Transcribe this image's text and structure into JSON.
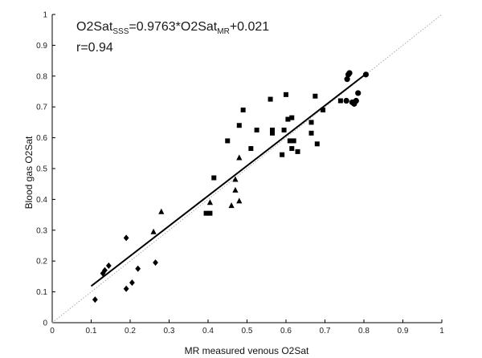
{
  "chart_data": {
    "type": "scatter",
    "xlabel": "MR measured venous O2Sat",
    "ylabel": "Blood gas O2Sat",
    "xlim": [
      0,
      1
    ],
    "ylim": [
      0,
      1
    ],
    "x_ticks": [
      "0",
      "0.1",
      "0.2",
      "0.3",
      "0.4",
      "0.5",
      "0.6",
      "0.7",
      "0.8",
      "0.9",
      "1"
    ],
    "y_ticks": [
      "0",
      "0.1",
      "0.2",
      "0.3",
      "0.4",
      "0.5",
      "0.6",
      "0.7",
      "0.8",
      "0.9",
      "1"
    ],
    "grid": false,
    "annotation": {
      "eq_left": "O2Sat",
      "eq_sub1": "SSS",
      "eq_mid": "=0.9763*O2Sat",
      "eq_sub2": "MR",
      "eq_right": "+0.021",
      "r_text": "r=0.94"
    },
    "fit_line": {
      "slope": 0.9763,
      "intercept": 0.021,
      "x_range": [
        0.1,
        0.81
      ],
      "color": "#000000"
    },
    "identity_line": {
      "color": "#aaaaaa",
      "style": "dotted"
    },
    "series": [
      {
        "marker": "diamond",
        "points": [
          [
            0.11,
            0.075
          ],
          [
            0.13,
            0.16
          ],
          [
            0.135,
            0.17
          ],
          [
            0.145,
            0.185
          ],
          [
            0.19,
            0.11
          ],
          [
            0.19,
            0.275
          ],
          [
            0.205,
            0.13
          ],
          [
            0.22,
            0.175
          ],
          [
            0.265,
            0.195
          ]
        ]
      },
      {
        "marker": "triangle",
        "points": [
          [
            0.26,
            0.295
          ],
          [
            0.28,
            0.36
          ],
          [
            0.405,
            0.39
          ],
          [
            0.46,
            0.38
          ],
          [
            0.47,
            0.43
          ],
          [
            0.47,
            0.465
          ],
          [
            0.48,
            0.395
          ],
          [
            0.48,
            0.535
          ]
        ]
      },
      {
        "marker": "square",
        "points": [
          [
            0.395,
            0.355
          ],
          [
            0.405,
            0.355
          ],
          [
            0.415,
            0.47
          ],
          [
            0.45,
            0.59
          ],
          [
            0.48,
            0.64
          ],
          [
            0.49,
            0.69
          ],
          [
            0.51,
            0.565
          ],
          [
            0.525,
            0.625
          ],
          [
            0.56,
            0.725
          ],
          [
            0.565,
            0.625
          ],
          [
            0.565,
            0.615
          ],
          [
            0.59,
            0.545
          ],
          [
            0.595,
            0.625
          ],
          [
            0.6,
            0.74
          ],
          [
            0.605,
            0.66
          ],
          [
            0.61,
            0.59
          ],
          [
            0.615,
            0.665
          ],
          [
            0.615,
            0.565
          ],
          [
            0.62,
            0.59
          ],
          [
            0.63,
            0.555
          ],
          [
            0.665,
            0.65
          ],
          [
            0.665,
            0.615
          ],
          [
            0.675,
            0.735
          ],
          [
            0.68,
            0.58
          ],
          [
            0.695,
            0.69
          ],
          [
            0.74,
            0.72
          ]
        ]
      },
      {
        "marker": "circle",
        "points": [
          [
            0.755,
            0.72
          ],
          [
            0.757,
            0.79
          ],
          [
            0.76,
            0.805
          ],
          [
            0.763,
            0.81
          ],
          [
            0.77,
            0.715
          ],
          [
            0.775,
            0.71
          ],
          [
            0.78,
            0.72
          ],
          [
            0.785,
            0.745
          ],
          [
            0.805,
            0.805
          ]
        ]
      }
    ]
  }
}
